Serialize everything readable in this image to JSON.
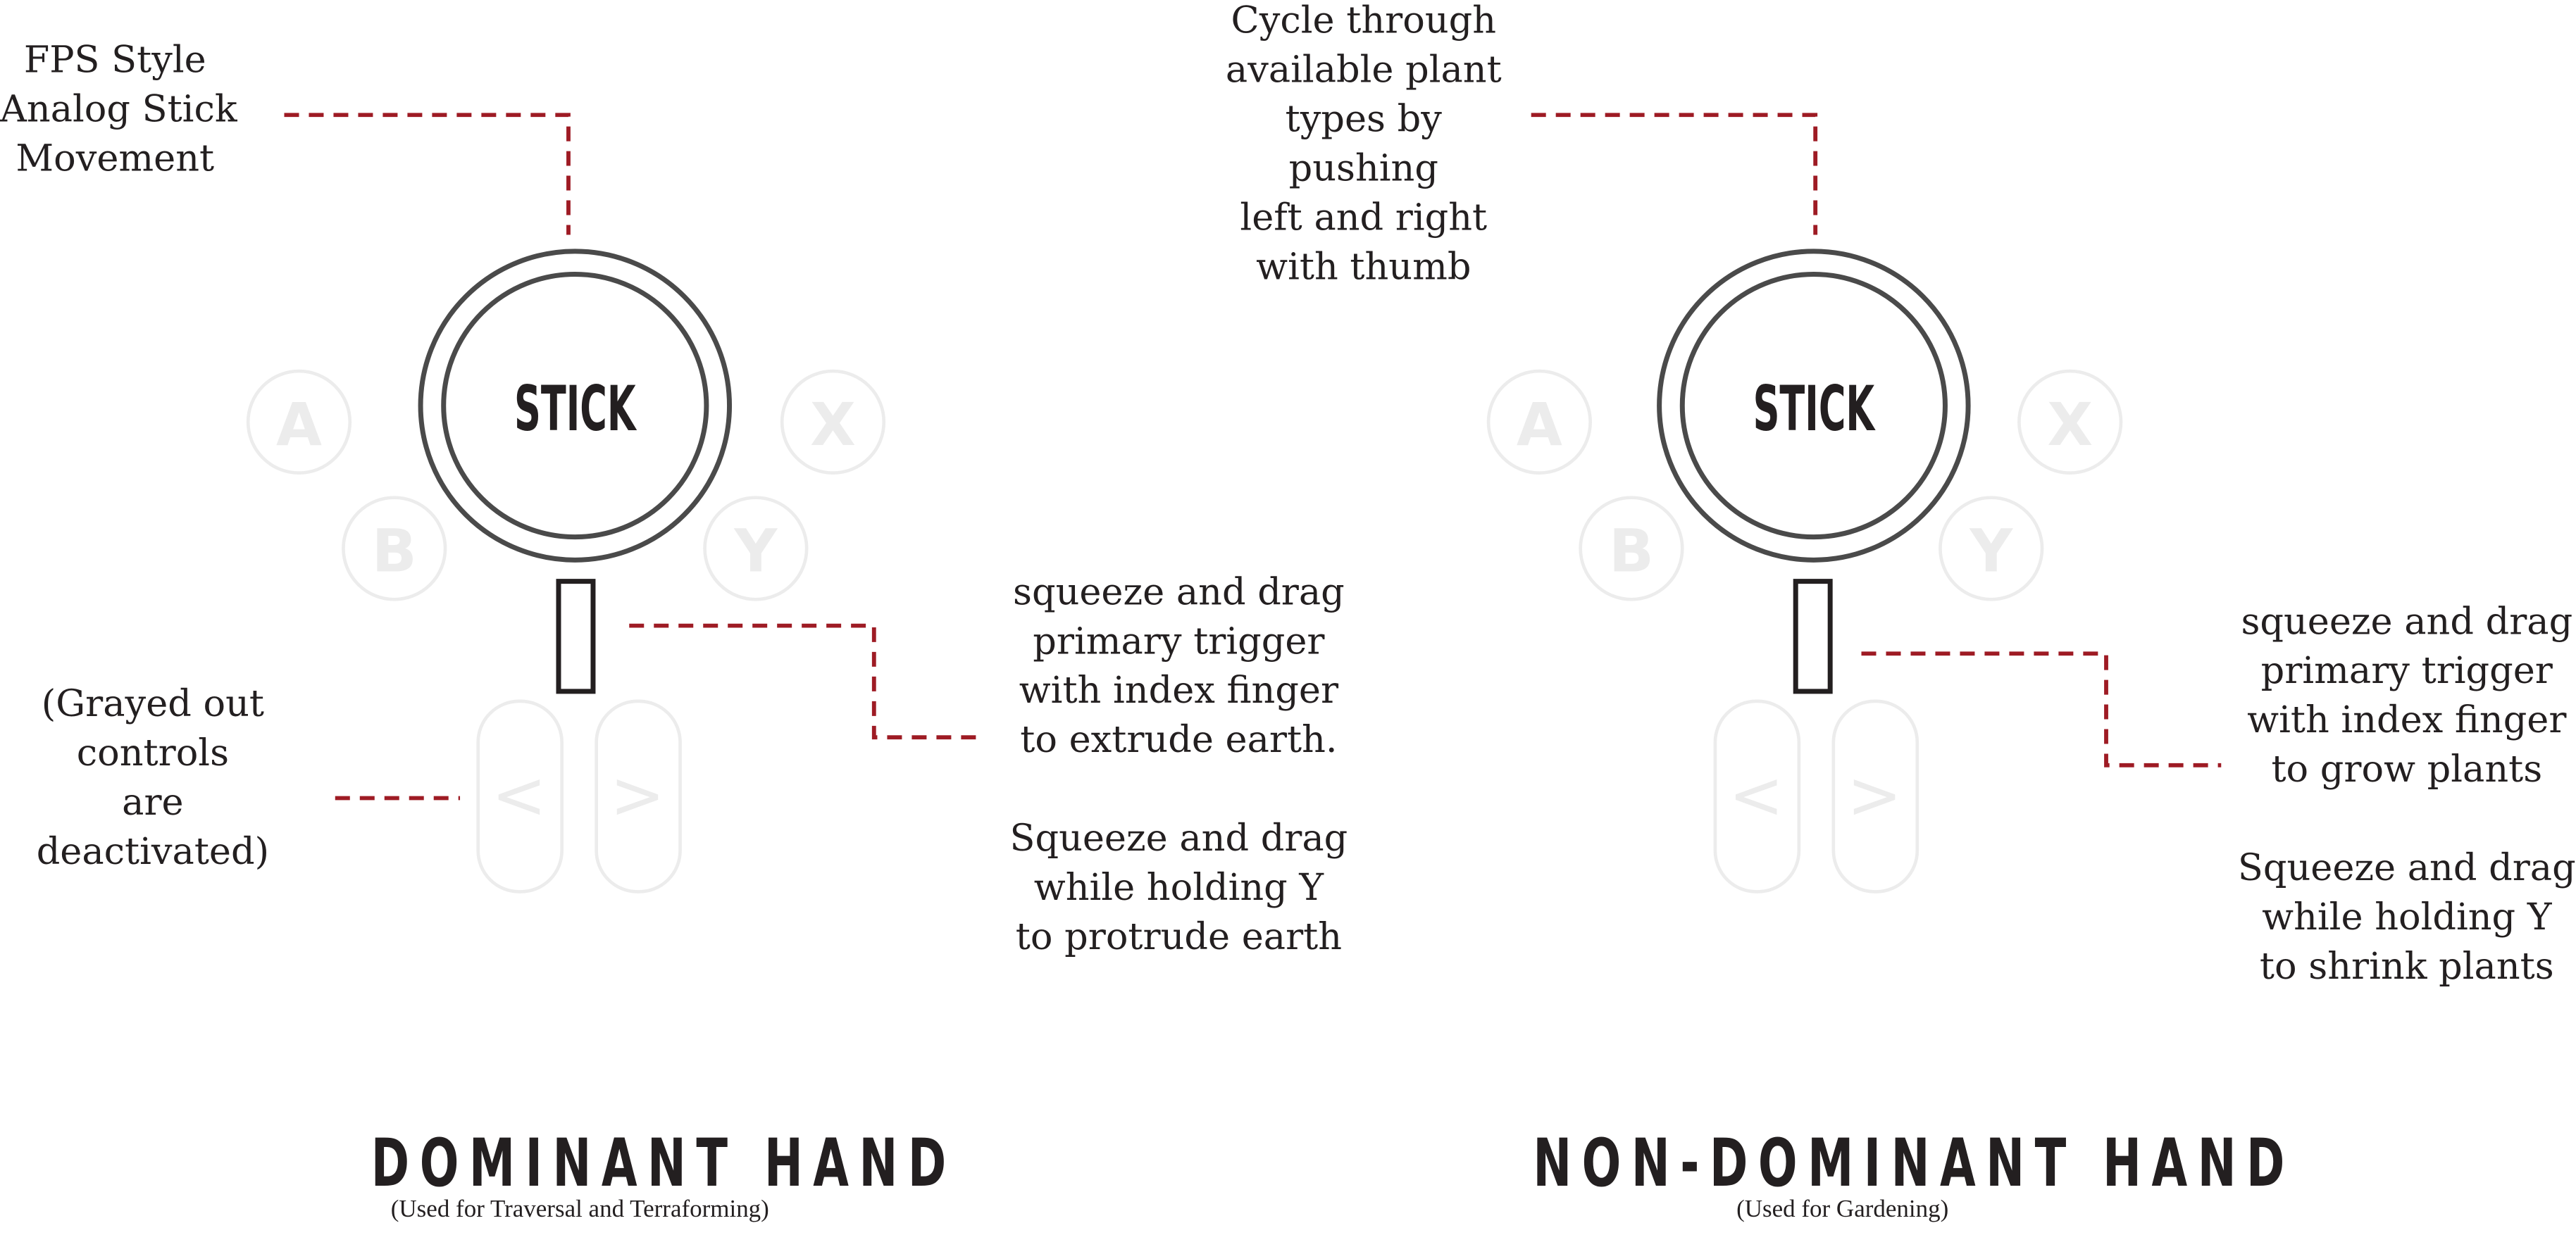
{
  "hands": [
    {
      "id": "dominant",
      "stick_label": "STICK",
      "buttons": {
        "a": "A",
        "b": "B",
        "x": "X",
        "y": "Y",
        "left": "<",
        "right": ">"
      },
      "title": "DOMINANT HAND",
      "subtitle": "(Used for Traversal and Terraforming)",
      "notes": {
        "stick": "FPS Style\nAnalog Stick\nMovement",
        "trigger": "squeeze and drag\nprimary trigger\nwith index finger\nto extrude earth.\n\nSqueeze and drag\nwhile holding Y\nto protrude earth",
        "grayed": "(Grayed out\ncontrols\nare\ndeactivated)"
      }
    },
    {
      "id": "non-dominant",
      "stick_label": "STICK",
      "buttons": {
        "a": "A",
        "b": "B",
        "x": "X",
        "y": "Y",
        "left": "<",
        "right": ">"
      },
      "title": "NON-DOMINANT HAND",
      "subtitle": "(Used for Gardening)",
      "notes": {
        "stick": "Cycle through\navailable plant\ntypes by\npushing\nleft and right\nwith thumb",
        "trigger": "squeeze and drag\nprimary trigger\nwith index finger\nto grow plants\n\nSqueeze and drag\nwhile holding Y\nto shrink plants"
      }
    }
  ],
  "colors": {
    "ink": "#231f20",
    "leader": "#9e1b24",
    "inactive": "#ececec"
  }
}
